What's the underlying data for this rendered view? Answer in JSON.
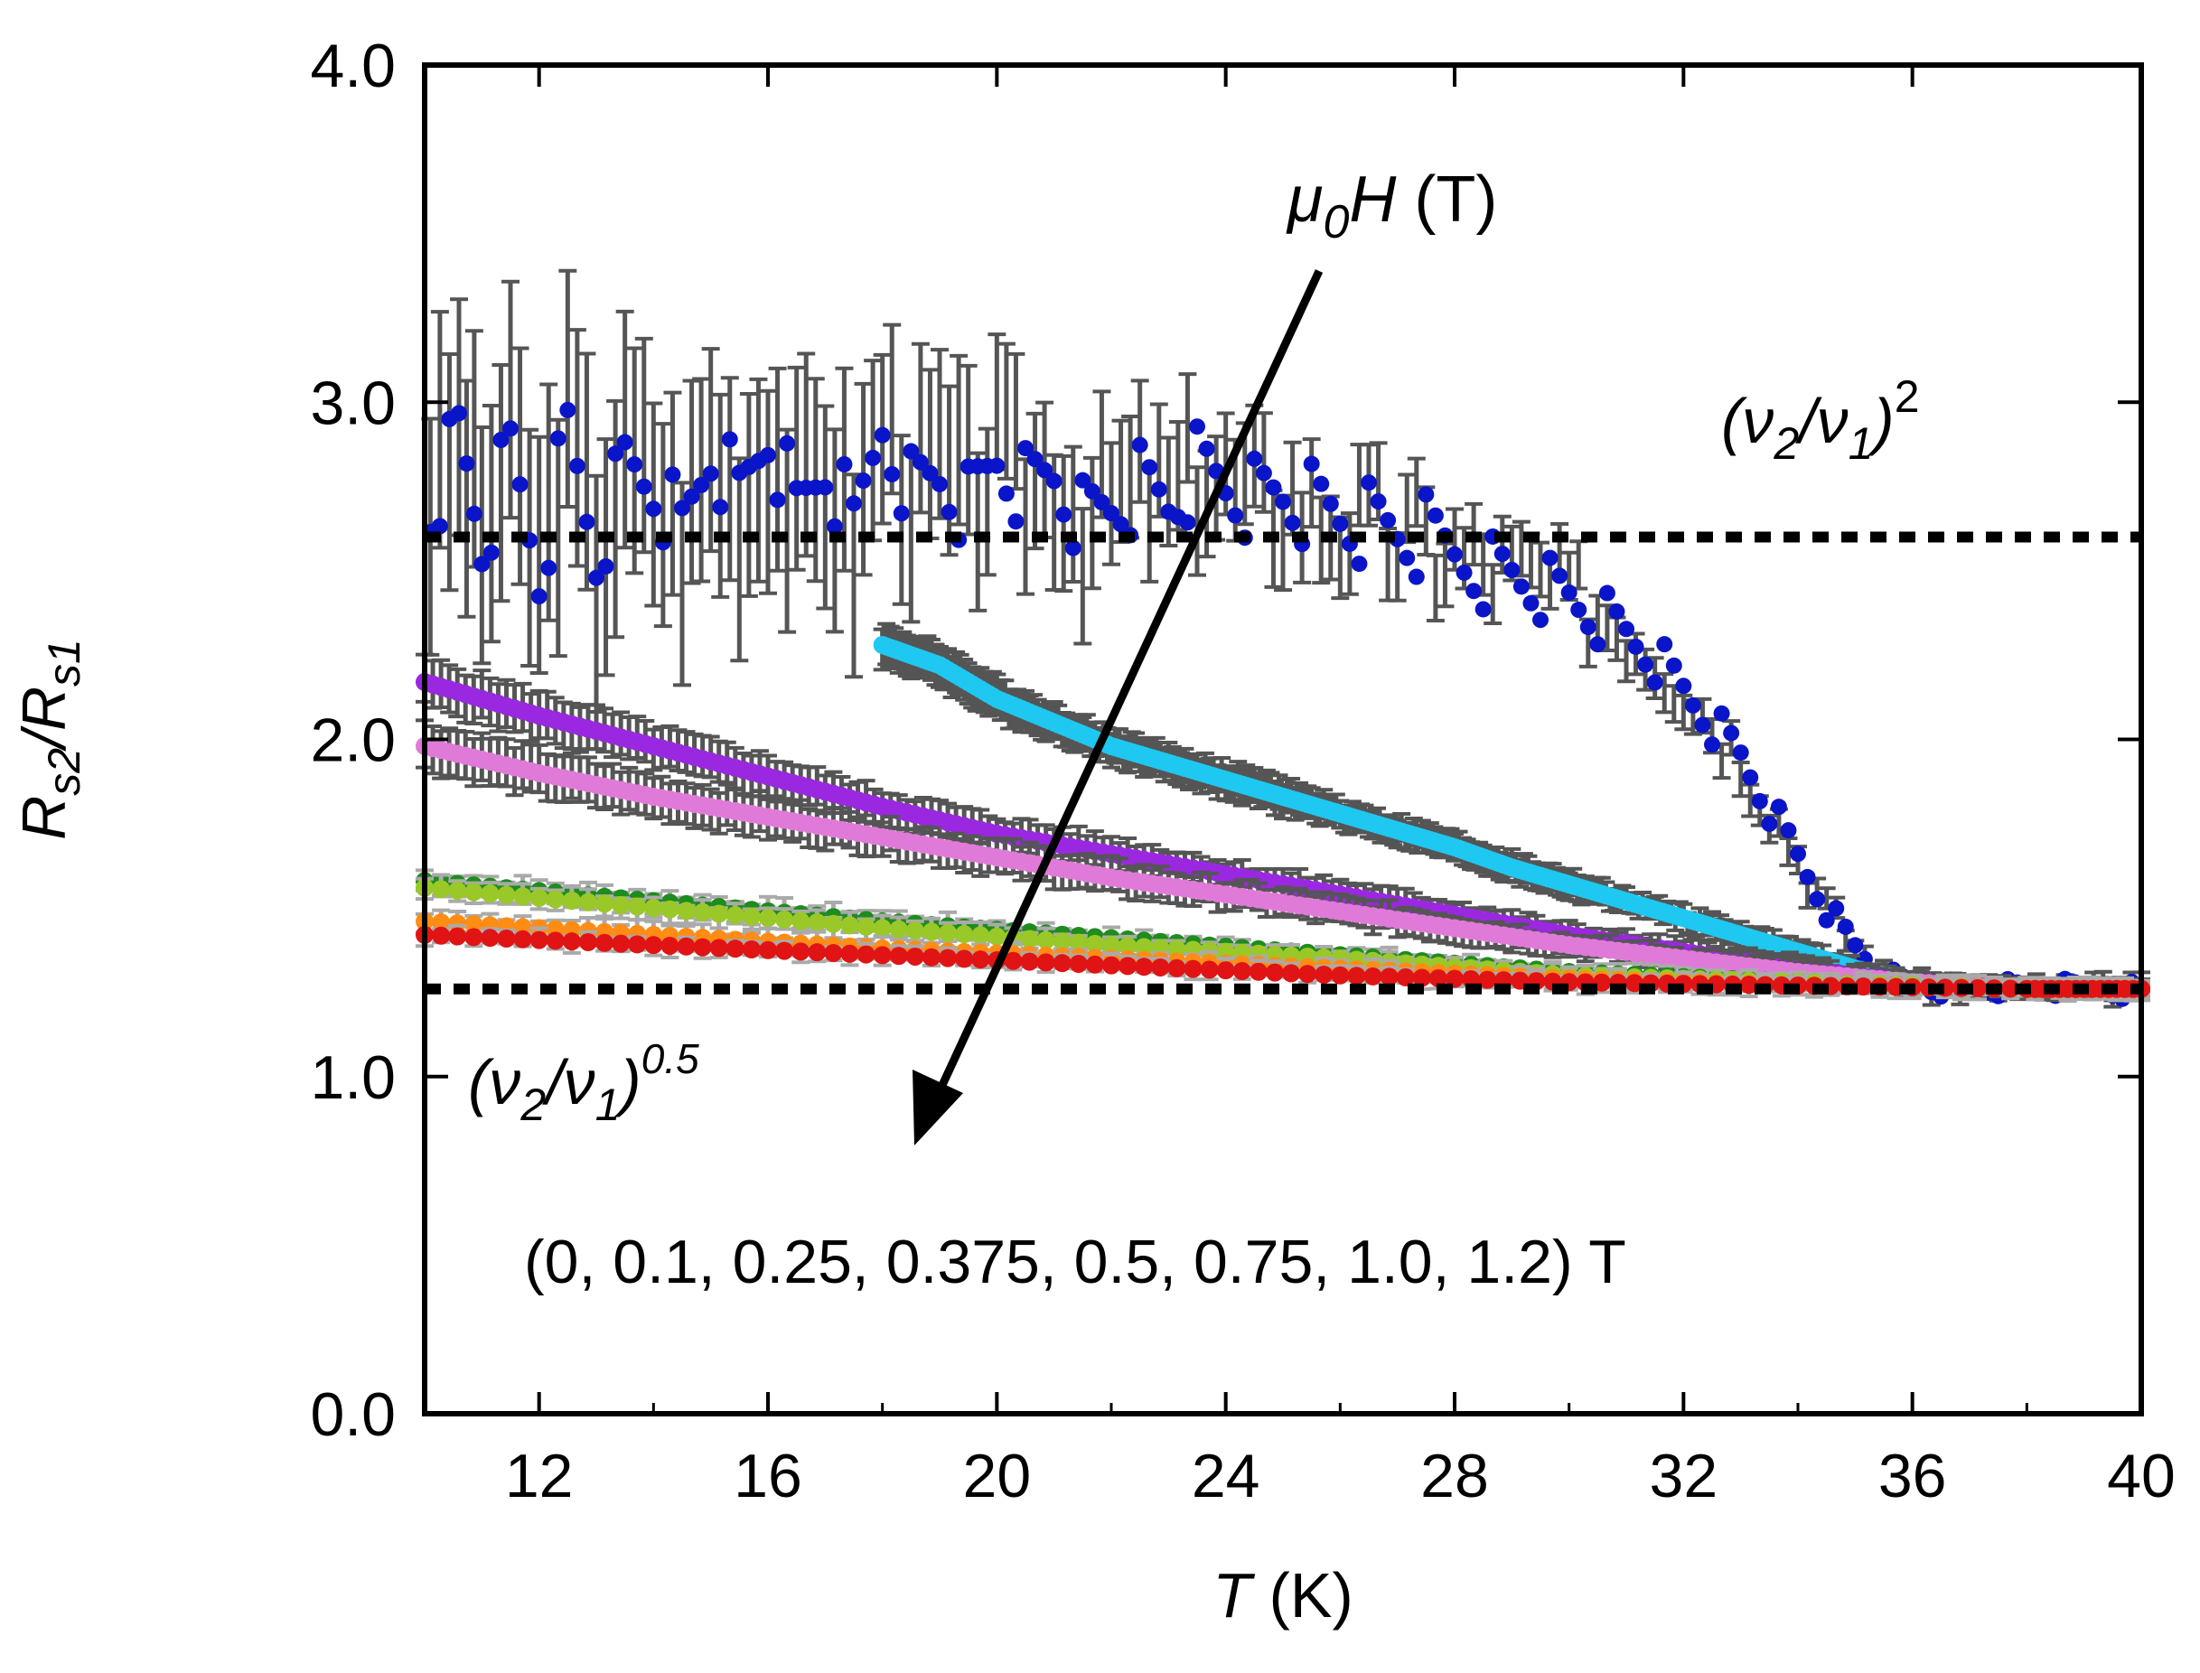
{
  "chart_data": {
    "type": "scatter",
    "title": "",
    "xlabel": "T",
    "xlabel_unit": " (K)",
    "ylabel": "R",
    "ylabel_sub1": "s2",
    "ylabel_mid": "/R",
    "ylabel_sub2": "s1",
    "xlim": [
      10,
      40
    ],
    "ylim": [
      0,
      4
    ],
    "xticks": [
      12,
      16,
      20,
      24,
      28,
      32,
      36,
      40
    ],
    "xtick_labels": [
      "12",
      "16",
      "20",
      "24",
      "28",
      "32",
      "36",
      "40"
    ],
    "yticks": [
      0,
      1,
      2,
      3,
      4
    ],
    "ytick_labels": [
      "0.0",
      "1.0",
      "2.0",
      "3.0",
      "4.0"
    ],
    "grid": false,
    "reference_lines": [
      {
        "y": 2.6,
        "style": "dotted",
        "label_base": "(ν",
        "label_sub1": "2",
        "label_mid": "/ν",
        "label_sub2": "1",
        "label_close": ")",
        "label_sup": "2"
      },
      {
        "y": 1.26,
        "style": "dotted",
        "label_base": "(ν",
        "label_sub1": "2",
        "label_mid": "/ν",
        "label_sub2": "1",
        "label_close": ")",
        "label_sup": "0.5"
      }
    ],
    "arrow_label": {
      "mu": "μ",
      "sub": "0",
      "h": "H",
      "unit": " (T)"
    },
    "field_list_label": "(0, 0.1, 0.25, 0.375, 0.5, 0.75, 1.0, 1.2) T",
    "series": [
      {
        "color": "#0a14c8",
        "errorbar_color": "#555555",
        "style": "scatter",
        "x": [
          10.1,
          10.6,
          11.0,
          11.5,
          12.0,
          12.5,
          13.0,
          13.5,
          14.0,
          14.5,
          15.0,
          15.5,
          16.0,
          16.5,
          17.0,
          17.5,
          18.0,
          18.5,
          19.0,
          19.5,
          20.0,
          20.5,
          21.0,
          21.5,
          22.0,
          22.5,
          23.0,
          23.5,
          24.0,
          24.5,
          25.0,
          25.5,
          26.0,
          26.5,
          27.0,
          27.5,
          28.0,
          28.5,
          29.0,
          29.5,
          30.0,
          30.5,
          31.0,
          31.5,
          32.0,
          32.5,
          33.0,
          33.5,
          34.0,
          34.5,
          35.0,
          35.5,
          36.0,
          36.5,
          37.0,
          37.5,
          38.0,
          38.5,
          39.0,
          39.5,
          40.0
        ],
        "y": [
          2.7,
          2.9,
          2.6,
          2.85,
          2.5,
          2.9,
          2.55,
          2.8,
          2.75,
          2.6,
          2.85,
          2.7,
          2.9,
          2.65,
          2.8,
          2.6,
          2.95,
          2.75,
          2.8,
          2.7,
          2.85,
          2.75,
          2.8,
          2.65,
          2.7,
          2.75,
          2.7,
          2.8,
          2.75,
          2.7,
          2.72,
          2.68,
          2.65,
          2.62,
          2.6,
          2.58,
          2.55,
          2.52,
          2.5,
          2.47,
          2.43,
          2.38,
          2.32,
          2.25,
          2.15,
          2.05,
          1.95,
          1.8,
          1.65,
          1.5,
          1.38,
          1.3,
          1.27,
          1.26,
          1.26,
          1.26,
          1.26,
          1.26,
          1.26,
          1.26,
          1.26
        ],
        "err": [
          0.35,
          0.35,
          0.35,
          0.35,
          0.35,
          0.35,
          0.35,
          0.35,
          0.3,
          0.3,
          0.3,
          0.3,
          0.3,
          0.3,
          0.3,
          0.3,
          0.25,
          0.25,
          0.25,
          0.25,
          0.2,
          0.2,
          0.2,
          0.2,
          0.18,
          0.18,
          0.16,
          0.16,
          0.15,
          0.15,
          0.14,
          0.13,
          0.12,
          0.12,
          0.1,
          0.1,
          0.09,
          0.09,
          0.08,
          0.08,
          0.07,
          0.07,
          0.06,
          0.06,
          0.05,
          0.05,
          0.05,
          0.04,
          0.04,
          0.03,
          0.03,
          0.02,
          0.02,
          0.02,
          0.02,
          0.02,
          0.02,
          0.02,
          0.02,
          0.02,
          0.02
        ]
      },
      {
        "color": "#1ec8f0",
        "errorbar_color": "#555555",
        "style": "line",
        "x": [
          18.0,
          19.0,
          20.0,
          21.0,
          22.0,
          23.0,
          24.0,
          25.0,
          26.0,
          27.0,
          28.0,
          29.0,
          30.0,
          31.0,
          32.0,
          33.0,
          34.0,
          35.0,
          36.0,
          37.0,
          38.0,
          39.0,
          40.0
        ],
        "y": [
          2.28,
          2.22,
          2.12,
          2.05,
          1.98,
          1.93,
          1.88,
          1.83,
          1.78,
          1.73,
          1.68,
          1.62,
          1.57,
          1.52,
          1.47,
          1.42,
          1.37,
          1.32,
          1.28,
          1.27,
          1.26,
          1.26,
          1.26
        ],
        "err": [
          0.06,
          0.06,
          0.06,
          0.05,
          0.05,
          0.05,
          0.05,
          0.05,
          0.04,
          0.04,
          0.04,
          0.04,
          0.04,
          0.03,
          0.03,
          0.03,
          0.03,
          0.02,
          0.02,
          0.02,
          0.02,
          0.02,
          0.02
        ]
      },
      {
        "color": "#9a28e0",
        "errorbar_color": "#555555",
        "style": "line",
        "x": [
          10,
          12,
          14,
          16,
          18,
          20,
          22,
          24,
          26,
          28,
          30,
          32,
          34,
          36,
          38,
          40
        ],
        "y": [
          2.17,
          2.07,
          1.98,
          1.89,
          1.8,
          1.72,
          1.66,
          1.6,
          1.54,
          1.48,
          1.42,
          1.37,
          1.32,
          1.28,
          1.26,
          1.26
        ],
        "err": [
          0.07,
          0.07,
          0.06,
          0.06,
          0.05,
          0.05,
          0.05,
          0.04,
          0.04,
          0.04,
          0.03,
          0.03,
          0.03,
          0.02,
          0.02,
          0.02
        ]
      },
      {
        "color": "#e07ad8",
        "errorbar_color": "#555555",
        "style": "line",
        "x": [
          10,
          12,
          14,
          16,
          18,
          20,
          22,
          24,
          26,
          28,
          30,
          32,
          34,
          36,
          38,
          40
        ],
        "y": [
          1.98,
          1.9,
          1.83,
          1.77,
          1.71,
          1.65,
          1.59,
          1.54,
          1.49,
          1.44,
          1.39,
          1.35,
          1.31,
          1.28,
          1.26,
          1.26
        ],
        "err": [
          0.07,
          0.07,
          0.06,
          0.06,
          0.05,
          0.05,
          0.05,
          0.04,
          0.04,
          0.04,
          0.03,
          0.03,
          0.03,
          0.02,
          0.02,
          0.02
        ]
      },
      {
        "color": "#1e8c1e",
        "errorbar_color": "#aaaaaa",
        "style": "line",
        "x": [
          10,
          14,
          18,
          22,
          26,
          30,
          34,
          38,
          40
        ],
        "y": [
          1.58,
          1.52,
          1.46,
          1.41,
          1.36,
          1.31,
          1.28,
          1.26,
          1.26
        ],
        "err": [
          0.03,
          0.03,
          0.03,
          0.02,
          0.02,
          0.02,
          0.02,
          0.02,
          0.02
        ]
      },
      {
        "color": "#9ac828",
        "errorbar_color": "#aaaaaa",
        "style": "line",
        "x": [
          10,
          14,
          18,
          22,
          26,
          30,
          34,
          38,
          40
        ],
        "y": [
          1.56,
          1.5,
          1.44,
          1.39,
          1.35,
          1.3,
          1.28,
          1.26,
          1.26
        ],
        "err": [
          0.03,
          0.03,
          0.03,
          0.02,
          0.02,
          0.02,
          0.02,
          0.02,
          0.02
        ]
      },
      {
        "color": "#ff8c14",
        "errorbar_color": "#aaaaaa",
        "style": "line",
        "x": [
          10,
          14,
          18,
          22,
          26,
          30,
          34,
          38,
          40
        ],
        "y": [
          1.46,
          1.42,
          1.38,
          1.35,
          1.32,
          1.29,
          1.27,
          1.26,
          1.26
        ],
        "err": [
          0.03,
          0.03,
          0.02,
          0.02,
          0.02,
          0.02,
          0.02,
          0.02,
          0.02
        ]
      },
      {
        "color": "#e01414",
        "errorbar_color": "#aaaaaa",
        "style": "line",
        "x": [
          10,
          14,
          18,
          22,
          26,
          30,
          34,
          38,
          40
        ],
        "y": [
          1.42,
          1.39,
          1.36,
          1.33,
          1.3,
          1.28,
          1.27,
          1.26,
          1.26
        ],
        "err": [
          0.02,
          0.02,
          0.02,
          0.02,
          0.02,
          0.02,
          0.02,
          0.02,
          0.02
        ]
      }
    ]
  }
}
